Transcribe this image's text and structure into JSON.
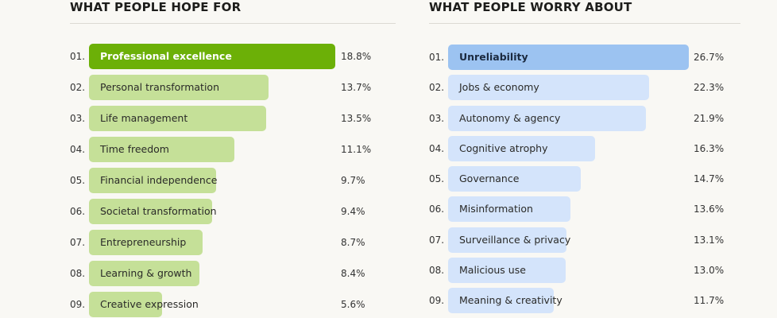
{
  "chart_data": [
    {
      "type": "bar",
      "orientation": "horizontal",
      "title": "WHAT PEOPLE HOPE FOR",
      "ranks": [
        "01.",
        "02.",
        "03.",
        "04.",
        "05.",
        "06.",
        "07.",
        "08.",
        "09."
      ],
      "categories": [
        "Professional excellence",
        "Personal transformation",
        "Life management",
        "Time freedom",
        "Financial independence",
        "Societal transformation",
        "Entrepreneurship",
        "Learning & growth",
        "Creative expression"
      ],
      "values": [
        18.8,
        13.7,
        13.5,
        11.1,
        9.7,
        9.4,
        8.7,
        8.4,
        5.6
      ],
      "value_labels": [
        "18.8%",
        "13.7%",
        "13.5%",
        "11.1%",
        "9.7%",
        "9.4%",
        "8.7%",
        "8.4%",
        "5.6%"
      ],
      "unit": "%",
      "colors": {
        "highlight": "#6cb007",
        "bar": "#c5e098"
      }
    },
    {
      "type": "bar",
      "orientation": "horizontal",
      "title": "WHAT PEOPLE WORRY ABOUT",
      "ranks": [
        "01.",
        "02.",
        "03.",
        "04.",
        "05.",
        "06.",
        "07.",
        "08.",
        "09."
      ],
      "categories": [
        "Unreliability",
        "Jobs & economy",
        "Autonomy & agency",
        "Cognitive atrophy",
        "Governance",
        "Misinformation",
        "Surveillance & privacy",
        "Malicious use",
        "Meaning & creativity"
      ],
      "values": [
        26.7,
        22.3,
        21.9,
        16.3,
        14.7,
        13.6,
        13.1,
        13.0,
        11.7
      ],
      "value_labels": [
        "26.7%",
        "22.3%",
        "21.9%",
        "16.3%",
        "14.7%",
        "13.6%",
        "13.1%",
        "13.0%",
        "11.7%"
      ],
      "unit": "%",
      "colors": {
        "highlight": "#9cc3f1",
        "bar": "#d4e4fb"
      }
    }
  ]
}
